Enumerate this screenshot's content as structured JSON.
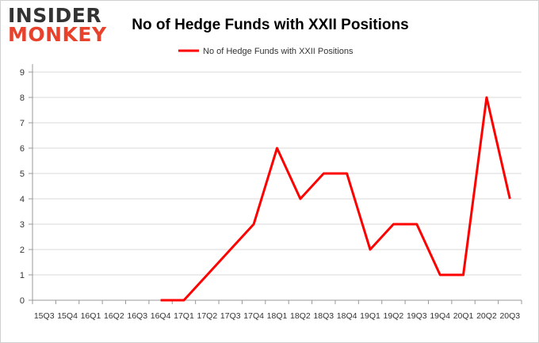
{
  "logo": {
    "line1": "INSIDER",
    "line2": "MONKEY"
  },
  "chart_data": {
    "type": "line",
    "title": "No of Hedge Funds with XXII Positions",
    "categories": [
      "15Q3",
      "15Q4",
      "16Q1",
      "16Q2",
      "16Q3",
      "16Q4",
      "17Q1",
      "17Q2",
      "17Q3",
      "17Q4",
      "18Q1",
      "18Q2",
      "18Q3",
      "18Q4",
      "19Q1",
      "19Q2",
      "19Q3",
      "19Q4",
      "20Q1",
      "20Q2",
      "20Q3"
    ],
    "series": [
      {
        "name": "No of Hedge Funds with XXII Positions",
        "values": [
          null,
          null,
          null,
          null,
          null,
          0,
          0,
          1,
          2,
          3,
          6,
          4,
          5,
          5,
          2,
          3,
          3,
          1,
          1,
          8,
          4
        ]
      }
    ],
    "ylim": [
      0,
      9
    ],
    "yticks": [
      0,
      1,
      2,
      3,
      4,
      5,
      6,
      7,
      8,
      9
    ],
    "grid": true,
    "legend": "top-center",
    "line_color": "#ff0000",
    "logo_colors": {
      "insider": "#333333",
      "monkey": "#e8412c"
    }
  }
}
